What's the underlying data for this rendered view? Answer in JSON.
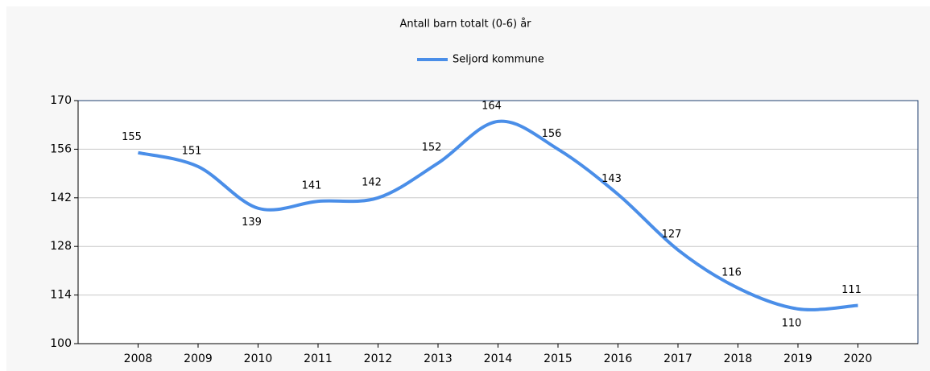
{
  "chart_data": {
    "type": "line",
    "title": "Antall barn totalt (0-6) år",
    "categories": [
      "2008",
      "2009",
      "2010",
      "2011",
      "2012",
      "2013",
      "2014",
      "2015",
      "2016",
      "2017",
      "2018",
      "2019",
      "2020"
    ],
    "series": [
      {
        "name": "Seljord kommune",
        "color": "#4a8ee8",
        "values": [
          155,
          151,
          139,
          141,
          142,
          152,
          164,
          156,
          143,
          127,
          116,
          110,
          111
        ]
      }
    ],
    "ylim": [
      100,
      170
    ],
    "yticks": [
      100,
      114,
      128,
      142,
      156,
      170
    ],
    "grid": true,
    "legend": "top",
    "smooth": true
  }
}
